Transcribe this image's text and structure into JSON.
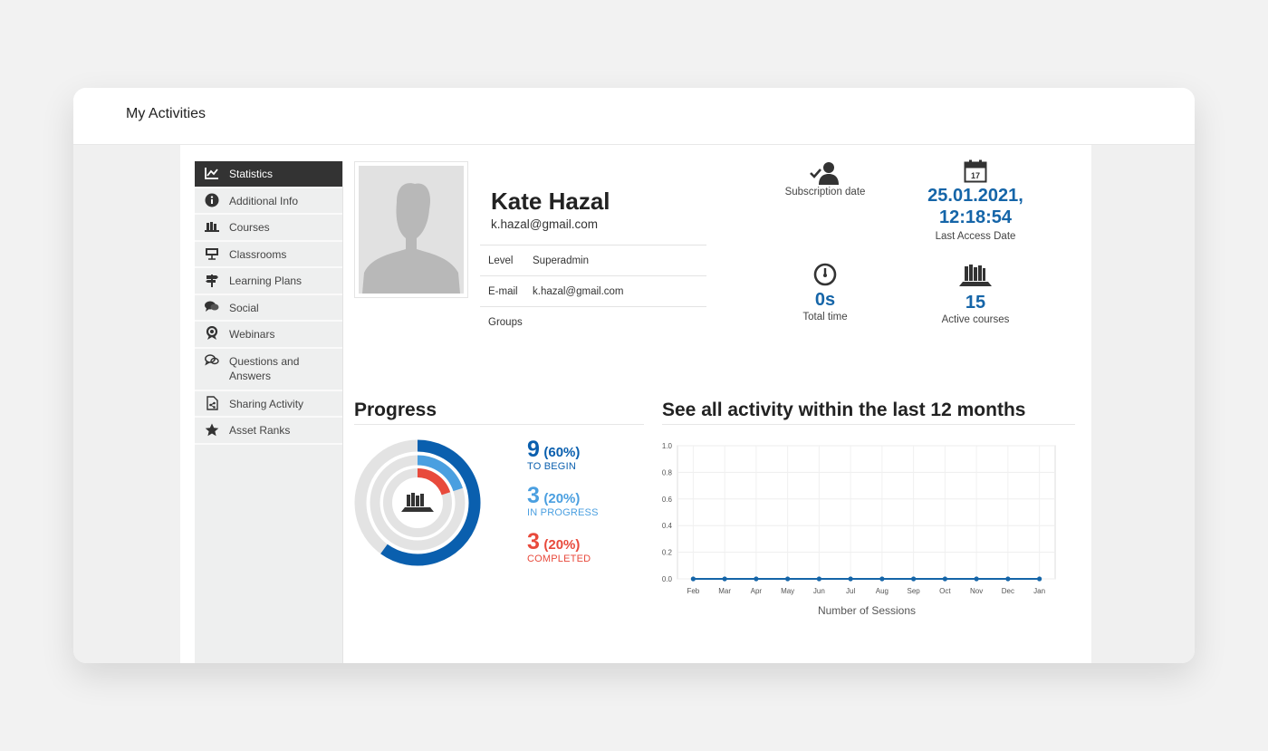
{
  "page": {
    "title": "My Activities"
  },
  "sidebar": {
    "items": [
      {
        "label": "Statistics",
        "icon": "chart-icon",
        "active": true
      },
      {
        "label": "Additional Info",
        "icon": "info-icon"
      },
      {
        "label": "Courses",
        "icon": "courses-icon"
      },
      {
        "label": "Classrooms",
        "icon": "classroom-icon"
      },
      {
        "label": "Learning Plans",
        "icon": "signpost-icon"
      },
      {
        "label": "Social",
        "icon": "chat-bubbles-icon"
      },
      {
        "label": "Webinars",
        "icon": "webinar-icon"
      },
      {
        "label": "Questions and Answers",
        "icon": "questions-icon"
      },
      {
        "label": "Sharing Activity",
        "icon": "share-file-icon"
      },
      {
        "label": "Asset Ranks",
        "icon": "star-icon"
      }
    ]
  },
  "profile": {
    "name": "Kate Hazal",
    "email": "k.hazal@gmail.com",
    "fields": [
      {
        "key": "Level",
        "value": "Superadmin"
      },
      {
        "key": "E-mail",
        "value": "k.hazal@gmail.com"
      },
      {
        "key": "Groups",
        "value": ""
      }
    ]
  },
  "stats": {
    "subscription": {
      "label": "Subscription date",
      "value": ""
    },
    "last_access": {
      "label": "Last Access Date",
      "value_line1": "25.01.2021,",
      "value_line2": "12:18:54"
    },
    "total_time": {
      "label": "Total time",
      "value": "0s"
    },
    "active_courses": {
      "label": "Active courses",
      "value": "15"
    }
  },
  "progress": {
    "title": "Progress",
    "to_begin": {
      "count": "9",
      "percent": "(60%)",
      "label": "TO BEGIN",
      "fraction": 0.6,
      "color": "#0a5fae"
    },
    "in_progress": {
      "count": "3",
      "percent": "(20%)",
      "label": "IN PROGRESS",
      "fraction": 0.2,
      "color": "#4a9fe0"
    },
    "completed": {
      "count": "3",
      "percent": "(20%)",
      "label": "COMPLETED",
      "fraction": 0.2,
      "color": "#e84a3c"
    }
  },
  "activity": {
    "title": "See all activity within the last 12 months",
    "chart_data": {
      "type": "line",
      "categories": [
        "Feb",
        "Mar",
        "Apr",
        "May",
        "Jun",
        "Jul",
        "Aug",
        "Sep",
        "Oct",
        "Nov",
        "Dec",
        "Jan"
      ],
      "series": [
        {
          "values": [
            0,
            0,
            0,
            0,
            0,
            0,
            0,
            0,
            0,
            0,
            0,
            0
          ]
        }
      ],
      "xlabel": "Number of Sessions",
      "ylabel": "",
      "ylim": [
        0,
        1.0
      ],
      "yticks": [
        "0.0",
        "0.2",
        "0.4",
        "0.6",
        "0.8",
        "1.0"
      ],
      "grid": true,
      "color": "#1565a8"
    }
  }
}
